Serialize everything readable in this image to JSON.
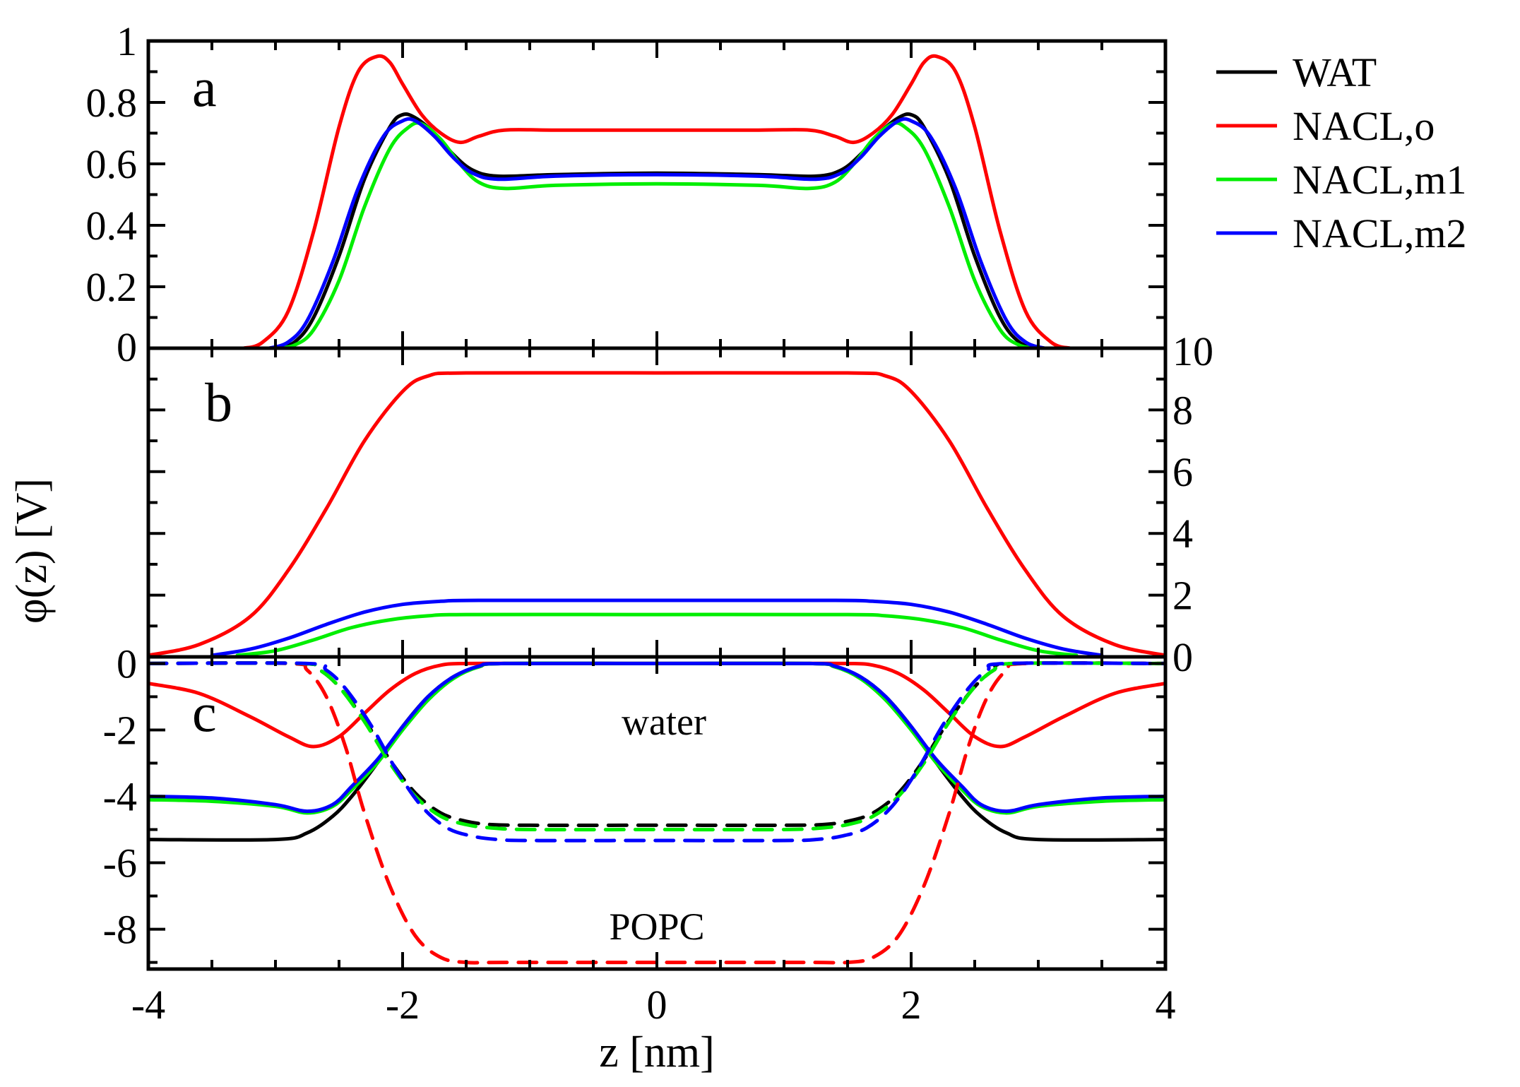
{
  "chart_data": {
    "type": "line",
    "xlabel": "z [nm]",
    "ylabel": "φ(z) [V]",
    "xlim": [
      -4,
      4
    ],
    "x_ticks": [
      "-4",
      "-2",
      "0",
      "2",
      "4"
    ],
    "colors": {
      "WAT": "#000000",
      "NACL,o": "#ff0000",
      "NACL,m1": "#00ee00",
      "NACL,m2": "#0000ff"
    },
    "legend": {
      "position": "outside-right-top",
      "entries": [
        {
          "label": "WAT",
          "color": "#000000"
        },
        {
          "label": "NACL,o",
          "color": "#ff0000"
        },
        {
          "label": "NACL,m1",
          "color": "#00ee00"
        },
        {
          "label": "NACL,m2",
          "color": "#0000ff"
        }
      ]
    },
    "panels": [
      {
        "id": "a",
        "label": "a",
        "ylim": [
          0,
          1
        ],
        "y_ticks": [
          "0",
          "0.2",
          "0.4",
          "0.6",
          "0.8",
          "1"
        ],
        "y_axis_side": "left",
        "series": [
          {
            "name": "NACL,o",
            "color": "#ff0000",
            "style": "solid",
            "x": [
              -3.25,
              -3.1,
              -2.9,
              -2.7,
              -2.5,
              -2.35,
              -2.2,
              -2.1,
              -2.0,
              -1.85,
              -1.7,
              -1.55,
              -1.4,
              -1.2,
              -0.8,
              0,
              0.8,
              1.2,
              1.4,
              1.55,
              1.7,
              1.85,
              2.0,
              2.1,
              2.2,
              2.35,
              2.5,
              2.7,
              2.9,
              3.1,
              3.25
            ],
            "y": [
              0,
              0.02,
              0.12,
              0.38,
              0.72,
              0.9,
              0.95,
              0.93,
              0.86,
              0.76,
              0.7,
              0.67,
              0.69,
              0.71,
              0.71,
              0.71,
              0.71,
              0.71,
              0.69,
              0.67,
              0.7,
              0.76,
              0.86,
              0.93,
              0.95,
              0.9,
              0.72,
              0.38,
              0.12,
              0.02,
              0
            ]
          },
          {
            "name": "WAT",
            "color": "#000000",
            "style": "solid",
            "x": [
              -3.0,
              -2.85,
              -2.7,
              -2.5,
              -2.3,
              -2.1,
              -2.0,
              -1.9,
              -1.75,
              -1.6,
              -1.45,
              -1.25,
              -0.8,
              0,
              0.8,
              1.25,
              1.45,
              1.6,
              1.75,
              1.9,
              2.0,
              2.1,
              2.3,
              2.5,
              2.7,
              2.85,
              3.0
            ],
            "y": [
              0,
              0.02,
              0.1,
              0.3,
              0.55,
              0.72,
              0.76,
              0.75,
              0.7,
              0.63,
              0.58,
              0.56,
              0.565,
              0.57,
              0.565,
              0.56,
              0.58,
              0.63,
              0.7,
              0.75,
              0.76,
              0.72,
              0.55,
              0.3,
              0.1,
              0.02,
              0
            ]
          },
          {
            "name": "NACL,m1",
            "color": "#00ee00",
            "style": "solid",
            "x": [
              -3.0,
              -2.85,
              -2.7,
              -2.5,
              -2.3,
              -2.1,
              -1.95,
              -1.85,
              -1.7,
              -1.55,
              -1.4,
              -1.2,
              -0.8,
              0,
              0.8,
              1.2,
              1.4,
              1.55,
              1.7,
              1.85,
              1.95,
              2.1,
              2.3,
              2.5,
              2.7,
              2.85,
              3.0
            ],
            "y": [
              0,
              0.01,
              0.06,
              0.22,
              0.46,
              0.65,
              0.72,
              0.73,
              0.68,
              0.6,
              0.54,
              0.52,
              0.53,
              0.535,
              0.53,
              0.52,
              0.54,
              0.6,
              0.68,
              0.73,
              0.72,
              0.65,
              0.46,
              0.22,
              0.06,
              0.01,
              0
            ]
          },
          {
            "name": "NACL,m2",
            "color": "#0000ff",
            "style": "solid",
            "x": [
              -3.05,
              -2.9,
              -2.75,
              -2.55,
              -2.35,
              -2.15,
              -2.0,
              -1.9,
              -1.75,
              -1.6,
              -1.45,
              -1.25,
              -0.8,
              0,
              0.8,
              1.25,
              1.45,
              1.6,
              1.75,
              1.9,
              2.0,
              2.15,
              2.35,
              2.55,
              2.75,
              2.9,
              3.05
            ],
            "y": [
              0,
              0.02,
              0.09,
              0.28,
              0.52,
              0.69,
              0.74,
              0.74,
              0.69,
              0.62,
              0.57,
              0.55,
              0.56,
              0.565,
              0.56,
              0.55,
              0.57,
              0.62,
              0.69,
              0.74,
              0.74,
              0.69,
              0.52,
              0.28,
              0.09,
              0.02,
              0
            ]
          }
        ]
      },
      {
        "id": "b",
        "label": "b",
        "ylim": [
          0,
          10
        ],
        "y_ticks": [
          "0",
          "2",
          "4",
          "6",
          "8",
          "10"
        ],
        "y_axis_side": "right",
        "series": [
          {
            "name": "NACL,o",
            "color": "#ff0000",
            "style": "solid",
            "x": [
              -4.0,
              -3.6,
              -3.2,
              -2.9,
              -2.6,
              -2.3,
              -2.0,
              -1.8,
              -1.5,
              0,
              1.5,
              1.8,
              2.0,
              2.3,
              2.6,
              2.9,
              3.2,
              3.6,
              4.0
            ],
            "y": [
              0.05,
              0.4,
              1.3,
              2.8,
              4.8,
              7.0,
              8.6,
              9.1,
              9.2,
              9.2,
              9.2,
              9.1,
              8.6,
              7.0,
              4.8,
              2.8,
              1.3,
              0.4,
              0.05
            ]
          },
          {
            "name": "NACL,m1",
            "color": "#00ee00",
            "style": "solid",
            "x": [
              -3.3,
              -3.0,
              -2.7,
              -2.4,
              -2.1,
              -1.8,
              -1.5,
              0,
              1.5,
              1.8,
              2.1,
              2.4,
              2.7,
              3.0,
              3.3
            ],
            "y": [
              0.05,
              0.2,
              0.55,
              0.95,
              1.2,
              1.33,
              1.37,
              1.37,
              1.37,
              1.33,
              1.2,
              0.95,
              0.55,
              0.2,
              0.05
            ]
          },
          {
            "name": "NACL,m2",
            "color": "#0000ff",
            "style": "solid",
            "x": [
              -3.5,
              -3.2,
              -2.9,
              -2.6,
              -2.3,
              -2.0,
              -1.7,
              -1.4,
              0,
              1.4,
              1.7,
              2.0,
              2.3,
              2.6,
              2.9,
              3.2,
              3.5
            ],
            "y": [
              0.05,
              0.25,
              0.6,
              1.05,
              1.45,
              1.7,
              1.8,
              1.83,
              1.83,
              1.83,
              1.8,
              1.7,
              1.45,
              1.05,
              0.6,
              0.25,
              0.05
            ]
          }
        ]
      },
      {
        "id": "c",
        "label": "c",
        "ylim": [
          -9.2,
          0.2
        ],
        "y_ticks": [
          "0",
          "-2",
          "-4",
          "-6",
          "-8"
        ],
        "y_axis_side": "left",
        "annotations": [
          "water",
          "POPC"
        ],
        "series": [
          {
            "name": "NACL,o water",
            "color": "#ff0000",
            "style": "solid",
            "x": [
              -4.0,
              -3.6,
              -3.2,
              -2.9,
              -2.7,
              -2.5,
              -2.3,
              -2.1,
              -1.9,
              -1.7,
              -1.5,
              -1.0,
              0,
              1.0,
              1.5,
              1.7,
              1.9,
              2.1,
              2.3,
              2.5,
              2.7,
              2.9,
              3.2,
              3.6,
              4.0
            ],
            "y": [
              -0.6,
              -0.9,
              -1.6,
              -2.2,
              -2.5,
              -2.2,
              -1.5,
              -0.8,
              -0.3,
              -0.05,
              0,
              0,
              0,
              0,
              0,
              -0.05,
              -0.3,
              -0.8,
              -1.5,
              -2.2,
              -2.5,
              -2.2,
              -1.6,
              -0.9,
              -0.6
            ]
          },
          {
            "name": "WAT water",
            "color": "#000000",
            "style": "solid",
            "x": [
              -4.0,
              -3.0,
              -2.75,
              -2.55,
              -2.4,
              -2.2,
              -2.0,
              -1.8,
              -1.6,
              -1.4,
              -1.2,
              0,
              1.2,
              1.4,
              1.6,
              1.8,
              2.0,
              2.2,
              2.4,
              2.55,
              2.75,
              3.0,
              4.0
            ],
            "y": [
              -5.3,
              -5.3,
              -5.1,
              -4.6,
              -4.0,
              -3.0,
              -1.9,
              -1.0,
              -0.4,
              -0.1,
              0,
              0,
              0,
              -0.1,
              -0.4,
              -1.0,
              -1.9,
              -3.0,
              -4.0,
              -4.6,
              -5.1,
              -5.3,
              -5.3
            ]
          },
          {
            "name": "NACL,m1 water",
            "color": "#00ee00",
            "style": "solid",
            "x": [
              -4.0,
              -3.5,
              -3.0,
              -2.75,
              -2.55,
              -2.4,
              -2.2,
              -2.0,
              -1.8,
              -1.6,
              -1.4,
              -1.2,
              0,
              1.2,
              1.4,
              1.6,
              1.8,
              2.0,
              2.2,
              2.4,
              2.55,
              2.75,
              3.0,
              3.5,
              4.0
            ],
            "y": [
              -4.1,
              -4.15,
              -4.3,
              -4.5,
              -4.3,
              -3.8,
              -3.0,
              -2.0,
              -1.1,
              -0.45,
              -0.1,
              0,
              0,
              0,
              -0.1,
              -0.45,
              -1.1,
              -2.0,
              -3.0,
              -3.8,
              -4.3,
              -4.5,
              -4.3,
              -4.15,
              -4.1
            ]
          },
          {
            "name": "NACL,m2 water",
            "color": "#0000ff",
            "style": "solid",
            "x": [
              -4.0,
              -3.5,
              -3.0,
              -2.75,
              -2.55,
              -2.4,
              -2.2,
              -2.0,
              -1.8,
              -1.6,
              -1.4,
              -1.2,
              0,
              1.2,
              1.4,
              1.6,
              1.8,
              2.0,
              2.2,
              2.4,
              2.55,
              2.75,
              3.0,
              3.5,
              4.0
            ],
            "y": [
              -4.0,
              -4.05,
              -4.25,
              -4.45,
              -4.25,
              -3.7,
              -2.9,
              -1.9,
              -1.0,
              -0.4,
              -0.08,
              0,
              0,
              0,
              -0.08,
              -0.4,
              -1.0,
              -1.9,
              -2.9,
              -3.7,
              -4.25,
              -4.45,
              -4.25,
              -4.05,
              -4.0
            ]
          },
          {
            "name": "NACL,o POPC",
            "color": "#ff0000",
            "style": "dashed",
            "x": [
              -4.0,
              -2.9,
              -2.75,
              -2.6,
              -2.45,
              -2.3,
              -2.1,
              -1.9,
              -1.7,
              -1.5,
              -1.2,
              0,
              1.2,
              1.5,
              1.7,
              1.9,
              2.1,
              2.3,
              2.45,
              2.6,
              2.75,
              2.9,
              4.0
            ],
            "y": [
              0,
              0,
              -0.2,
              -1.0,
              -2.5,
              -4.5,
              -6.7,
              -8.2,
              -8.85,
              -9.0,
              -9.0,
              -9.0,
              -9.0,
              -9.0,
              -8.85,
              -8.2,
              -6.7,
              -4.5,
              -2.5,
              -1.0,
              -0.2,
              0,
              0
            ]
          },
          {
            "name": "WAT POPC",
            "color": "#000000",
            "style": "dashed",
            "x": [
              -4.0,
              -2.8,
              -2.65,
              -2.5,
              -2.3,
              -2.1,
              -1.9,
              -1.7,
              -1.5,
              -1.3,
              -1.0,
              0,
              1.0,
              1.3,
              1.5,
              1.7,
              1.9,
              2.1,
              2.3,
              2.5,
              2.65,
              2.8,
              4.0
            ],
            "y": [
              0,
              0,
              -0.2,
              -0.7,
              -1.7,
              -2.9,
              -3.9,
              -4.5,
              -4.75,
              -4.85,
              -4.87,
              -4.87,
              -4.87,
              -4.85,
              -4.75,
              -4.5,
              -3.9,
              -2.9,
              -1.7,
              -0.7,
              -0.2,
              0,
              0
            ]
          },
          {
            "name": "NACL,m1 POPC",
            "color": "#00ee00",
            "style": "dashed",
            "x": [
              -4.0,
              -2.8,
              -2.65,
              -2.5,
              -2.3,
              -2.1,
              -1.9,
              -1.7,
              -1.5,
              -1.3,
              -1.0,
              0,
              1.0,
              1.3,
              1.5,
              1.7,
              1.9,
              2.1,
              2.3,
              2.5,
              2.65,
              2.8,
              4.0
            ],
            "y": [
              0,
              0,
              -0.2,
              -0.7,
              -1.75,
              -3.0,
              -4.0,
              -4.6,
              -4.85,
              -4.95,
              -5.0,
              -5.0,
              -5.0,
              -4.95,
              -4.85,
              -4.6,
              -4.0,
              -3.0,
              -1.75,
              -0.7,
              -0.2,
              0,
              0
            ]
          },
          {
            "name": "NACL,m2 POPC",
            "color": "#0000ff",
            "style": "dashed",
            "x": [
              -4.0,
              -2.75,
              -2.6,
              -2.45,
              -2.25,
              -2.05,
              -1.85,
              -1.65,
              -1.45,
              -1.25,
              -1.0,
              0,
              1.0,
              1.25,
              1.45,
              1.65,
              1.85,
              2.05,
              2.25,
              2.45,
              2.6,
              2.75,
              4.0
            ],
            "y": [
              0,
              0,
              -0.2,
              -0.75,
              -1.85,
              -3.2,
              -4.3,
              -4.95,
              -5.2,
              -5.3,
              -5.33,
              -5.33,
              -5.33,
              -5.3,
              -5.2,
              -4.95,
              -4.3,
              -3.2,
              -1.85,
              -0.75,
              -0.2,
              0,
              0
            ]
          }
        ]
      }
    ]
  }
}
